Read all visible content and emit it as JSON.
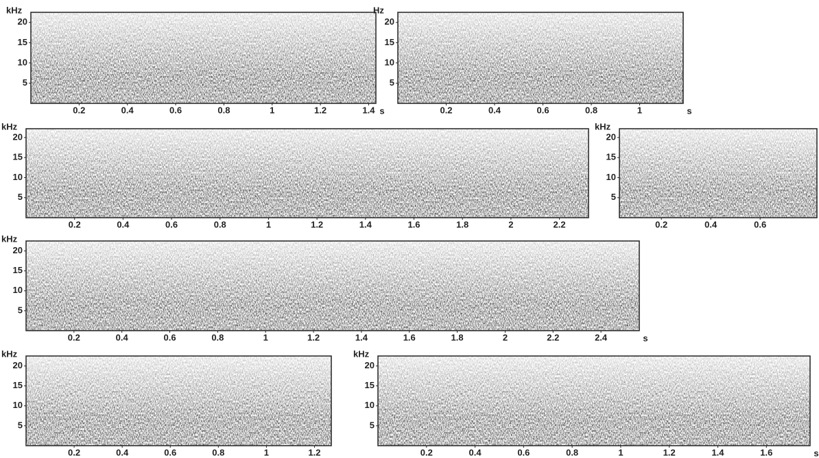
{
  "chart_data": [
    {
      "type": "spectrogram",
      "y_label": "kHz",
      "x_label": "s",
      "xlim": [
        0,
        1.43
      ],
      "xticks": [
        0.2,
        0.4,
        0.6,
        0.8,
        1,
        1.2,
        1.4
      ],
      "ylim": [
        0,
        22.5
      ],
      "yticks": [
        5,
        10,
        15,
        20
      ]
    },
    {
      "type": "spectrogram",
      "y_label": "Hz",
      "x_label": "s",
      "xlim": [
        0,
        1.18
      ],
      "xticks": [
        0.2,
        0.4,
        0.6,
        0.8,
        1
      ],
      "ylim": [
        0,
        22.5
      ],
      "yticks": [
        5,
        10,
        15,
        20
      ]
    },
    {
      "type": "spectrogram",
      "y_label": "kHz",
      "xlim": [
        0,
        2.32
      ],
      "xticks": [
        0.2,
        0.4,
        0.6,
        0.8,
        1,
        1.2,
        1.4,
        1.6,
        1.8,
        2,
        2.2
      ],
      "ylim": [
        0,
        22.2
      ],
      "yticks": [
        5,
        10,
        15,
        20
      ]
    },
    {
      "type": "spectrogram",
      "y_label": "kHz",
      "xlim": [
        0.03,
        0.83
      ],
      "xticks": [
        0.2,
        0.4,
        0.6
      ],
      "ylim": [
        0,
        22.2
      ],
      "yticks": [
        5,
        10,
        15,
        20
      ]
    },
    {
      "type": "spectrogram",
      "y_label": "kHz",
      "x_label": "s",
      "xlim": [
        0,
        2.56
      ],
      "xticks": [
        0.2,
        0.4,
        0.6,
        0.8,
        1,
        1.2,
        1.4,
        1.6,
        1.8,
        2,
        2.2,
        2.4
      ],
      "ylim": [
        0,
        22.5
      ],
      "yticks": [
        5,
        10,
        15,
        20
      ]
    },
    {
      "type": "spectrogram",
      "y_label": "kHz",
      "xlim": [
        0,
        1.27
      ],
      "xticks": [
        0.2,
        0.4,
        0.6,
        0.8,
        1,
        1.2
      ],
      "ylim": [
        0,
        22.5
      ],
      "yticks": [
        5,
        10,
        15,
        20
      ]
    },
    {
      "type": "spectrogram",
      "y_label": "kHz",
      "x_label": "s",
      "xlim": [
        0,
        1.78
      ],
      "xticks": [
        0.2,
        0.4,
        0.6,
        0.8,
        1,
        1.2,
        1.4,
        1.6
      ],
      "ylim": [
        0,
        22.5
      ],
      "yticks": [
        5,
        10,
        15,
        20
      ]
    }
  ]
}
